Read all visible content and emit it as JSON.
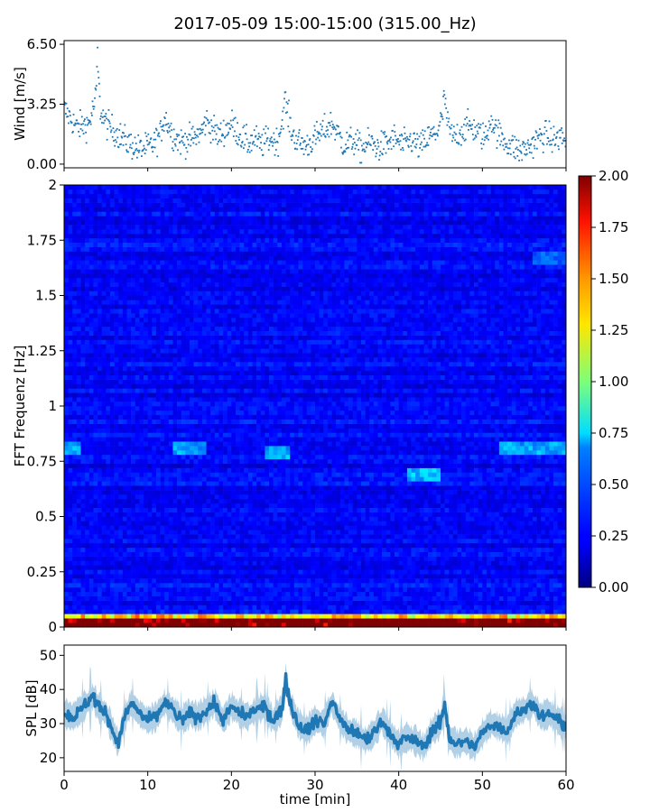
{
  "title": "2017-05-09 15:00-15:00 (315.00_Hz)",
  "chart_data": [
    {
      "type": "scatter",
      "panel": "wind",
      "ylabel": "Wind [m/s]",
      "xlim": [
        0,
        60
      ],
      "ylim": [
        -0.2,
        6.7
      ],
      "yticks": [
        0.0,
        3.25,
        6.5
      ],
      "ytick_labels": [
        "0.00",
        "3.25",
        "6.50"
      ],
      "marker_color": "#1f77b4",
      "x_min": [
        0.0,
        1.5,
        3.0,
        3.8,
        4.0,
        4.3,
        5.0,
        6.0,
        7.5,
        9.0,
        10.5,
        11.5,
        12.0,
        12.3,
        13.0,
        14.0,
        15.5,
        16.5,
        17.0,
        17.6,
        18.5,
        20.0,
        21.0,
        22.0,
        22.8,
        23.5,
        24.5,
        25.5,
        26.0,
        26.4,
        26.8,
        27.3,
        28.0,
        29.0,
        30.0,
        31.0,
        32.0,
        32.8,
        33.5,
        34.5,
        35.5,
        36.5,
        37.5,
        38.5,
        39.5,
        40.5,
        41.5,
        42.5,
        43.5,
        44.5,
        45.2,
        45.5,
        45.8,
        46.5,
        47.5,
        48.5,
        49.5,
        50.5,
        51.0,
        51.5,
        52.5,
        53.5,
        54.5,
        55.5,
        56.5,
        57.5,
        58.5,
        59.5,
        60.0
      ],
      "wind_mps": [
        3.0,
        2.0,
        2.2,
        3.6,
        5.8,
        3.0,
        2.2,
        1.8,
        1.2,
        0.8,
        1.0,
        1.6,
        2.6,
        2.3,
        1.6,
        1.2,
        1.4,
        1.8,
        2.4,
        2.0,
        1.5,
        2.2,
        1.6,
        1.1,
        1.4,
        1.0,
        1.4,
        1.2,
        2.2,
        3.5,
        2.6,
        1.6,
        1.2,
        1.0,
        1.4,
        1.8,
        2.2,
        1.6,
        1.0,
        1.3,
        0.8,
        1.2,
        0.9,
        1.1,
        1.4,
        1.0,
        1.3,
        0.9,
        1.4,
        1.7,
        2.5,
        3.8,
        2.2,
        1.4,
        1.8,
        2.1,
        1.7,
        1.4,
        2.6,
        1.9,
        1.3,
        1.0,
        0.7,
        0.9,
        1.3,
        1.6,
        1.3,
        1.5,
        1.2
      ]
    },
    {
      "type": "heatmap",
      "panel": "spectrogram",
      "ylabel": "FFT Frequenz [Hz]",
      "xlim": [
        0,
        60
      ],
      "ylim": [
        0,
        2
      ],
      "yticks": [
        0,
        0.25,
        0.5,
        0.75,
        1,
        1.25,
        1.5,
        1.75,
        2
      ],
      "ytick_labels": [
        "0",
        "0.25",
        "0.5",
        "0.75",
        "1",
        "1.25",
        "1.5",
        "1.75",
        "2"
      ],
      "colormap": "jet",
      "value_range": [
        0.0,
        2.0
      ],
      "colorbar_ticks": [
        "0.00",
        "0.25",
        "0.50",
        "0.75",
        "1.00",
        "1.25",
        "1.50",
        "1.75",
        "2.00"
      ],
      "typical_value": 0.25,
      "band_values": [
        {
          "freq_hz": 0.82,
          "x_min": [
            0,
            2
          ],
          "value": 0.6
        },
        {
          "freq_hz": 0.82,
          "x_min": [
            13,
            17
          ],
          "value": 0.6
        },
        {
          "freq_hz": 0.79,
          "x_min": [
            24,
            27
          ],
          "value": 0.6
        },
        {
          "freq_hz": 0.7,
          "x_min": [
            41,
            45
          ],
          "value": 0.65
        },
        {
          "freq_hz": 0.82,
          "x_min": [
            52,
            60
          ],
          "value": 0.6
        },
        {
          "freq_hz": 1.67,
          "x_min": [
            56,
            60
          ],
          "value": 0.45
        },
        {
          "freq_hz": 0.03,
          "x_min": [
            0,
            60
          ],
          "value": 1.2
        },
        {
          "freq_hz": 0.01,
          "x_min": [
            0,
            60
          ],
          "value": 1.8
        }
      ]
    },
    {
      "type": "line",
      "panel": "spl",
      "ylabel": "SPL [dB]",
      "xlabel": "time [min]",
      "xlim": [
        0,
        60
      ],
      "ylim": [
        16,
        53
      ],
      "yticks": [
        20,
        30,
        40,
        50
      ],
      "ytick_labels": [
        "20",
        "30",
        "40",
        "50"
      ],
      "xticks": [
        0,
        10,
        20,
        30,
        40,
        50,
        60
      ],
      "xtick_labels": [
        "0",
        "10",
        "20",
        "30",
        "40",
        "50",
        "60"
      ],
      "line_color": "#1f77b4",
      "x_min": [
        0,
        1,
        2,
        3.5,
        4,
        5,
        6,
        6.5,
        7,
        8,
        9,
        10,
        11,
        12,
        13,
        14,
        15,
        16,
        17,
        18,
        19,
        20,
        21,
        22,
        23,
        24,
        25,
        26,
        26.5,
        27,
        28,
        29,
        30,
        31,
        32,
        33,
        34,
        35,
        36,
        37,
        38,
        39,
        40,
        41,
        42,
        43,
        44,
        45,
        45.5,
        46,
        47,
        48,
        49,
        50,
        51,
        52,
        53,
        54,
        55,
        56,
        57,
        58,
        59,
        60
      ],
      "spl_db": [
        33,
        32,
        34,
        38,
        35,
        33,
        27,
        24,
        30,
        36,
        33,
        31,
        32,
        36,
        34,
        31,
        33,
        32,
        34,
        36,
        31,
        35,
        33,
        32,
        34,
        35,
        31,
        34,
        43,
        36,
        30,
        28,
        31,
        30,
        36,
        31,
        28,
        27,
        25,
        27,
        31,
        27,
        24,
        26,
        25,
        23,
        28,
        30,
        36,
        26,
        24,
        25,
        23,
        27,
        30,
        29,
        28,
        33,
        34,
        36,
        32,
        33,
        31,
        29
      ]
    }
  ]
}
